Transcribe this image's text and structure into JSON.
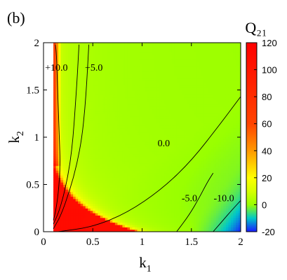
{
  "chart_data": {
    "type": "heatmap",
    "panel_label": "(b)",
    "title": "Q₂₁",
    "xlabel_main": "k",
    "xlabel_sub": "1",
    "ylabel_main": "k",
    "ylabel_sub": "2",
    "xlim": [
      0,
      2
    ],
    "ylim": [
      0,
      2
    ],
    "x_ticks": [
      {
        "value": 0,
        "label": "0"
      },
      {
        "value": 0.5,
        "label": "0.5"
      },
      {
        "value": 1,
        "label": "1"
      },
      {
        "value": 1.5,
        "label": "1.5"
      },
      {
        "value": 2,
        "label": "2"
      }
    ],
    "y_ticks": [
      {
        "value": 0,
        "label": "0"
      },
      {
        "value": 0.5,
        "label": "0.5"
      },
      {
        "value": 1,
        "label": "1"
      },
      {
        "value": 1.5,
        "label": "1.5"
      },
      {
        "value": 2,
        "label": "2"
      }
    ],
    "data_domain": {
      "k1_min": 0.1,
      "k1_max": 2,
      "k2_min": 0,
      "k2_max": 2
    },
    "colorbar": {
      "range": [
        -20,
        120
      ],
      "ticks": [
        {
          "value": 120,
          "label": "120"
        },
        {
          "value": 100,
          "label": "100"
        },
        {
          "value": 80,
          "label": "80"
        },
        {
          "value": 60,
          "label": "60"
        },
        {
          "value": 40,
          "label": "40"
        },
        {
          "value": 20,
          "label": "20"
        },
        {
          "value": 0,
          "label": "0"
        },
        {
          "value": -20,
          "label": "-20"
        }
      ],
      "stops": [
        {
          "value": -20,
          "color": "#1a1aff"
        },
        {
          "value": -10,
          "color": "#00c8c8"
        },
        {
          "value": 0,
          "color": "#99ff00"
        },
        {
          "value": 10,
          "color": "#d6ff00"
        },
        {
          "value": 20,
          "color": "#ffff00"
        },
        {
          "value": 40,
          "color": "#ff9900"
        },
        {
          "value": 60,
          "color": "#ff4400"
        },
        {
          "value": 120,
          "color": "#ff0000"
        }
      ]
    },
    "contours": [
      {
        "level": 10,
        "label": "+10.0",
        "points": [
          [
            0.12,
            1.98
          ],
          [
            0.13,
            1.9
          ],
          [
            0.14,
            1.6
          ],
          [
            0.15,
            1.3
          ],
          [
            0.16,
            1.0
          ],
          [
            0.17,
            0.7
          ],
          [
            0.15,
            0.4
          ],
          [
            0.12,
            0.2
          ],
          [
            0.1,
            0.12
          ]
        ]
      },
      {
        "level": 5,
        "label": "+5.0",
        "points": [
          [
            0.36,
            1.98
          ],
          [
            0.34,
            1.6
          ],
          [
            0.32,
            1.3
          ],
          [
            0.3,
            1.0
          ],
          [
            0.27,
            0.72
          ],
          [
            0.22,
            0.45
          ],
          [
            0.16,
            0.22
          ],
          [
            0.1,
            0.08
          ]
        ]
      },
      {
        "level": 5,
        "label": "",
        "points": [
          [
            0.46,
            1.98
          ],
          [
            0.44,
            1.6
          ],
          [
            0.42,
            1.3
          ],
          [
            0.39,
            1.0
          ],
          [
            0.34,
            0.72
          ],
          [
            0.27,
            0.45
          ],
          [
            0.18,
            0.18
          ],
          [
            0.1,
            0.03
          ]
        ]
      },
      {
        "level": 0,
        "label": "0.0",
        "points": [
          [
            0.15,
            0.0
          ],
          [
            0.5,
            0.05
          ],
          [
            0.85,
            0.2
          ],
          [
            1.2,
            0.45
          ],
          [
            1.5,
            0.75
          ],
          [
            1.8,
            1.15
          ],
          [
            2.0,
            1.43
          ]
        ]
      },
      {
        "level": -5,
        "label": "-5.0",
        "points": [
          [
            1.35,
            0.0
          ],
          [
            1.48,
            0.18
          ],
          [
            1.58,
            0.36
          ],
          [
            1.66,
            0.52
          ],
          [
            1.72,
            0.62
          ]
        ]
      },
      {
        "level": -10,
        "label": "-10.0",
        "points": [
          [
            1.72,
            0.0
          ],
          [
            1.82,
            0.12
          ],
          [
            1.92,
            0.24
          ],
          [
            2.0,
            0.33
          ]
        ]
      }
    ],
    "contour_labels": [
      {
        "text": "+10.0",
        "x": 0.13,
        "y": 1.74
      },
      {
        "text": "+5.0",
        "x": 0.51,
        "y": 1.74
      },
      {
        "text": "0.0",
        "x": 1.22,
        "y": 0.94
      },
      {
        "text": "-5.0",
        "x": 1.48,
        "y": 0.36
      },
      {
        "text": "-10.0",
        "x": 1.83,
        "y": 0.36
      }
    ]
  }
}
